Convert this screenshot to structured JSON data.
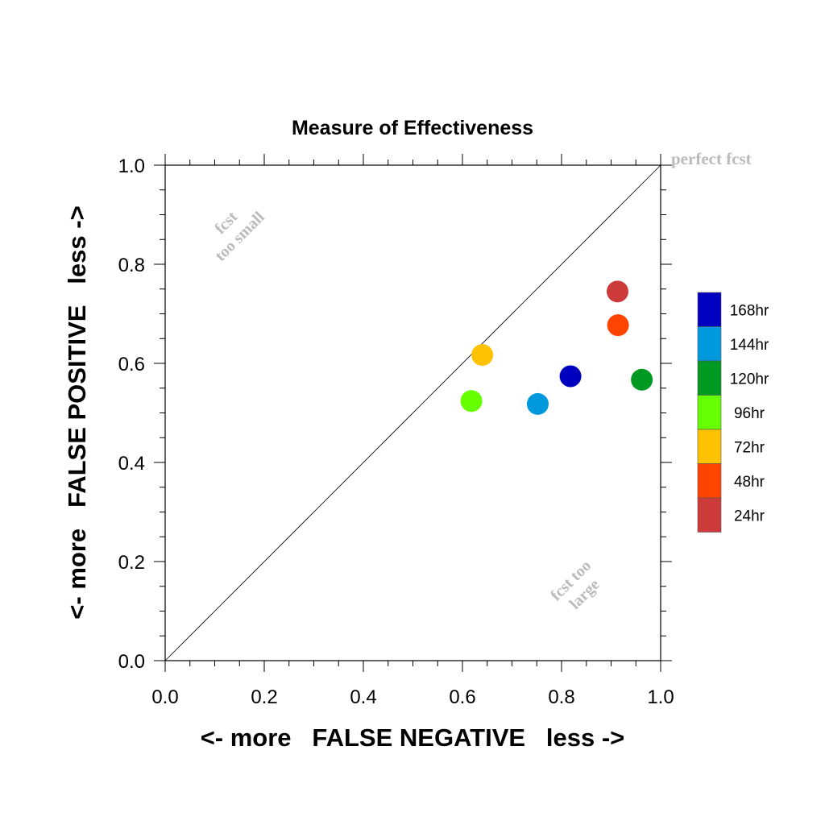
{
  "chart_data": {
    "type": "scatter",
    "title": "Measure of Effectiveness",
    "xlabel": "<- more   FALSE NEGATIVE   less ->",
    "ylabel": "<- more   FALSE POSITIVE   less ->",
    "xlim": [
      0.0,
      1.0
    ],
    "ylim": [
      0.0,
      1.0
    ],
    "xticks": [
      "0.0",
      "0.2",
      "0.4",
      "0.6",
      "0.8",
      "1.0"
    ],
    "yticks": [
      "0.0",
      "0.2",
      "0.4",
      "0.6",
      "0.8",
      "1.0"
    ],
    "grid": false,
    "diagonal_line": true,
    "legend_position": "right",
    "annotations": {
      "perfect": "perfect fcst",
      "too_small_1": "fcst",
      "too_small_2": "too small",
      "too_large_1": "fcst too",
      "too_large_2": "large"
    },
    "series": [
      {
        "name": "168hr",
        "color": "#0000C0",
        "x": 0.818,
        "y": 0.574
      },
      {
        "name": "144hr",
        "color": "#0099DD",
        "x": 0.752,
        "y": 0.518
      },
      {
        "name": "120hr",
        "color": "#009922",
        "x": 0.962,
        "y": 0.567
      },
      {
        "name": "96hr",
        "color": "#66FF00",
        "x": 0.618,
        "y": 0.524
      },
      {
        "name": "72hr",
        "color": "#FFC200",
        "x": 0.64,
        "y": 0.617
      },
      {
        "name": "48hr",
        "color": "#FF4400",
        "x": 0.914,
        "y": 0.677
      },
      {
        "name": "24hr",
        "color": "#CC3A3A",
        "x": 0.913,
        "y": 0.745
      }
    ]
  }
}
